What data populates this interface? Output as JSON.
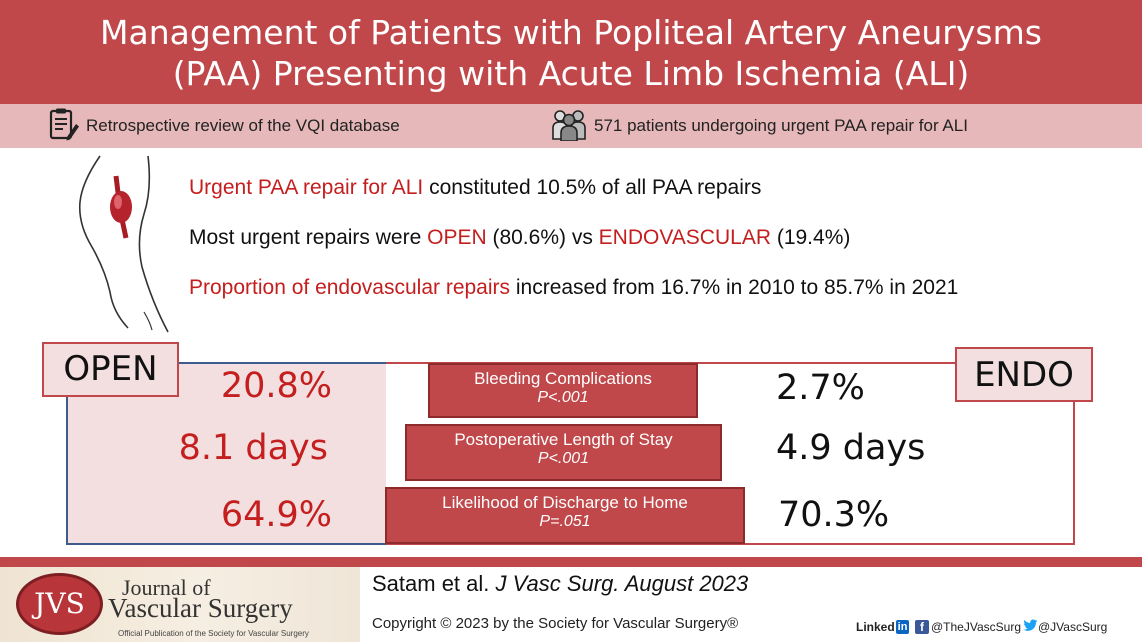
{
  "header": {
    "title_line1": "Management of Patients with Popliteal Artery Aneurysms",
    "title_line2": "(PAA) Presenting with Acute Limb Ischemia (ALI)"
  },
  "subheader": {
    "left_icon": "clipboard-icon",
    "left_text": "Retrospective review of the VQI database",
    "right_icon": "patients-group-icon",
    "right_text": "571 patients undergoing urgent PAA repair for ALI"
  },
  "findings": [
    {
      "highlight": "Urgent PAA repair for ALI",
      "rest": " constituted 10.5% of all PAA repairs"
    },
    {
      "pre": "Most urgent repairs were ",
      "open": "OPEN",
      "mid1": " (80.6%) vs ",
      "endo": "ENDOVASCULAR",
      "mid2": " (19.4%)"
    },
    {
      "highlight": "Proportion of endovascular repairs",
      "rest": " increased from 16.7% in 2010 to 85.7% in 2021"
    }
  ],
  "comparison": {
    "open_label": "OPEN",
    "endo_label": "ENDO",
    "metrics": [
      {
        "label": "Bleeding Complications",
        "p": "P<.001",
        "open": "20.8%",
        "endo": "2.7%"
      },
      {
        "label": "Postoperative Length of Stay",
        "p": "P<.001",
        "open": "8.1 days",
        "endo": "4.9 days"
      },
      {
        "label": "Likelihood of Discharge to Home",
        "p": "P=.051",
        "open": "64.9%",
        "endo": "70.3%"
      }
    ]
  },
  "footer": {
    "logo_abbrev": "JVS",
    "logo_line1": "Journal of",
    "logo_line2": "Vascular Surgery",
    "logo_tagline": "Official Publication of the Society for Vascular Surgery",
    "citation_authors": "Satam et al.",
    "citation_journal": "J Vasc Surg. August 2023",
    "copyright": "Copyright © 2023 by the Society for Vascular Surgery®",
    "linkedin_word": "Linked",
    "linkedin_in": "in",
    "facebook_handle": "@TheJVascSurg",
    "twitter_handle": "@JVascSurg"
  },
  "colors": {
    "brand_red": "#c0484a",
    "highlight_red": "#c41e1e",
    "pink_band": "#e6b8b9",
    "open_panel": "#f3dfe0",
    "open_border": "#3d5b8c"
  }
}
